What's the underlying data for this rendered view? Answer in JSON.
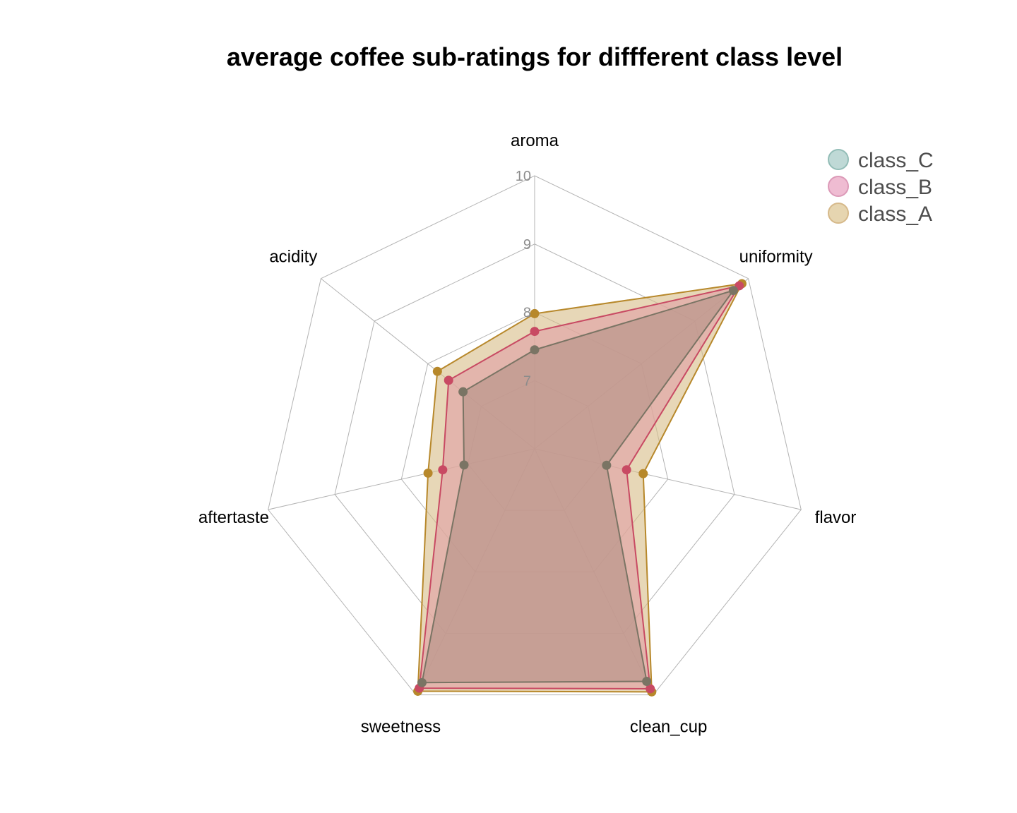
{
  "chart_data": {
    "type": "radar",
    "title": "average coffee sub-ratings for diffferent class level",
    "axes": [
      "aroma",
      "uniformity",
      "flavor",
      "clean_cup",
      "sweetness",
      "aftertaste",
      "acidity"
    ],
    "rticks": [
      "7",
      "8",
      "9",
      "10"
    ],
    "rlim": [
      6,
      10
    ],
    "grid": true,
    "legend_position": "top-right",
    "series": [
      {
        "name": "class_A",
        "values": [
          7.98,
          9.88,
          7.63,
          9.95,
          9.94,
          7.6,
          7.82
        ],
        "line_color": "#b7882b",
        "fill_color": "#d8bf8b",
        "legend_fill": "#e6d5b0",
        "legend_stroke": "#d6b98a"
      },
      {
        "name": "class_B",
        "values": [
          7.72,
          9.83,
          7.38,
          9.9,
          9.89,
          7.38,
          7.61
        ],
        "line_color": "#c84a63",
        "fill_color": "#e0a0a4",
        "legend_fill": "#efbcd2",
        "legend_stroke": "#dc9ab8"
      },
      {
        "name": "class_C",
        "values": [
          7.45,
          9.72,
          7.08,
          9.78,
          9.8,
          7.06,
          7.34
        ],
        "line_color": "#7a7464",
        "fill_color": "#b49287",
        "legend_fill": "#bfd9d6",
        "legend_stroke": "#93bdb7"
      }
    ],
    "legend_order": [
      "class_C",
      "class_B",
      "class_A"
    ]
  }
}
